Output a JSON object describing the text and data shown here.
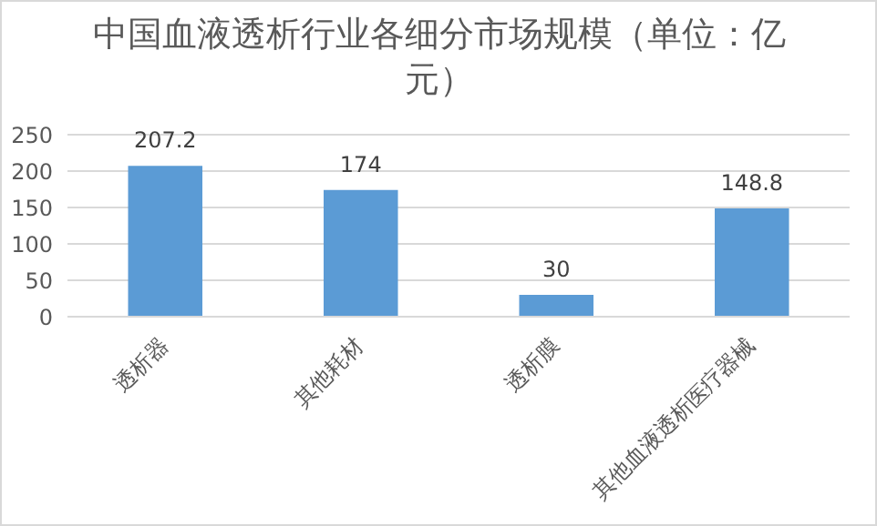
{
  "chart_data": {
    "type": "bar",
    "title": "中国血液透析行业各细分市场规模（单位：亿元）",
    "categories": [
      "透析器",
      "其他耗材",
      "透析膜",
      "其他血液透析医疗器械"
    ],
    "values": [
      207.2,
      174,
      30,
      148.8
    ],
    "color": "#5b9bd5",
    "ylim": [
      0,
      250
    ],
    "yticks": [
      0,
      50,
      100,
      150,
      200,
      250
    ],
    "grid": "y",
    "data_labels": true
  }
}
